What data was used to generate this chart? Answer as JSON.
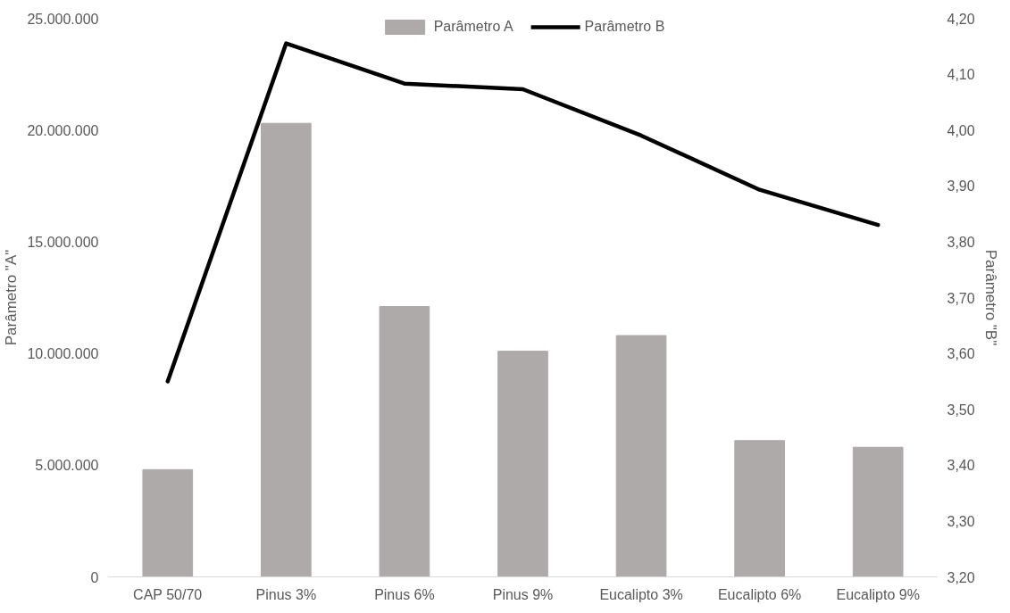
{
  "chart_data": {
    "type": "bar",
    "categories": [
      "CAP 50/70",
      "Pinus 3%",
      "Pinus 6%",
      "Pinus 9%",
      "Eucalipto 3%",
      "Eucalipto 6%",
      "Eucalipto 9%"
    ],
    "ylabel": "Parâmetro \"A\"",
    "y2label": "Parâmetro \"B\"",
    "series": [
      {
        "name": "Parâmetro A",
        "color": "#aeaaaa",
        "values": [
          4800000,
          20300000,
          12100000,
          10100000,
          10800000,
          6100000,
          5800000
        ]
      },
      {
        "name": "Parâmetro B",
        "type": "line",
        "axis": "y2",
        "color": "#000000",
        "values": [
          3.55,
          4.155,
          4.083,
          4.073,
          3.99,
          3.893,
          3.83
        ]
      }
    ],
    "ylim": [
      0,
      25000000
    ],
    "yticks": [
      {
        "value": 0,
        "label": "0"
      },
      {
        "value": 5000000,
        "label": "5.000.000"
      },
      {
        "value": 10000000,
        "label": "10.000.000"
      },
      {
        "value": 15000000,
        "label": "15.000.000"
      },
      {
        "value": 20000000,
        "label": "20.000.000"
      },
      {
        "value": 25000000,
        "label": "25.000.000"
      }
    ],
    "y2lim": [
      3.2,
      4.2
    ],
    "y2ticks": [
      {
        "value": 3.2,
        "label": "3,20"
      },
      {
        "value": 3.3,
        "label": "3,30"
      },
      {
        "value": 3.4,
        "label": "3,40"
      },
      {
        "value": 3.5,
        "label": "3,50"
      },
      {
        "value": 3.6,
        "label": "3,60"
      },
      {
        "value": 3.7,
        "label": "3,70"
      },
      {
        "value": 3.8,
        "label": "3,80"
      },
      {
        "value": 3.9,
        "label": "3,90"
      },
      {
        "value": 4.0,
        "label": "4,00"
      },
      {
        "value": 4.1,
        "label": "4,10"
      },
      {
        "value": 4.2,
        "label": "4,20"
      }
    ],
    "legend": "top",
    "grid": false,
    "marker": "none"
  }
}
